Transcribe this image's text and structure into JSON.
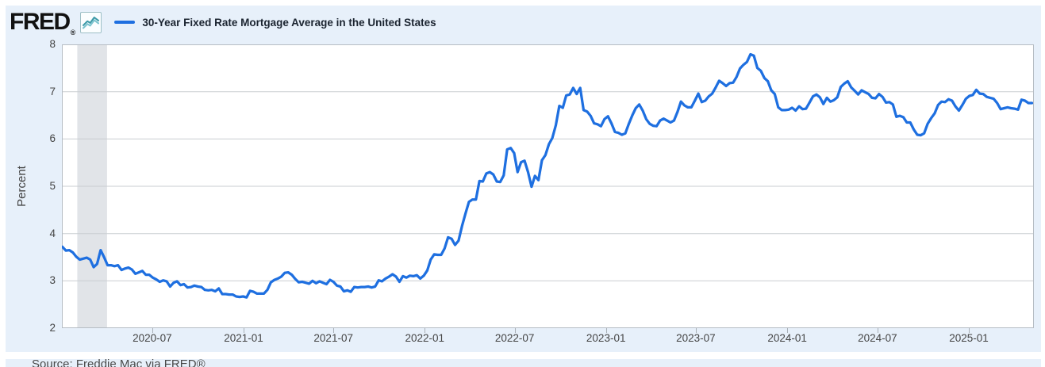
{
  "header": {
    "logo_text": "FRED",
    "logo_reg": "®",
    "series_title": "30-Year Fixed Rate Mortgage Average in the United States"
  },
  "footer": {
    "source": "Source: Freddie Mac via FRED®"
  },
  "colors": {
    "panel_bg": "#e7f0fa",
    "plot_bg": "#ffffff",
    "gridline": "#c9cdd1",
    "plot_border": "#b6bdc4",
    "recession_band": "#e1e4e8",
    "line": "#1e6fe0",
    "tick_text": "#444444",
    "title_text": "#1b2430",
    "source_text": "#4a4a4a"
  },
  "chart_data": {
    "type": "line",
    "title": "30-Year Fixed Rate Mortgage Average in the United States",
    "xlabel": "",
    "ylabel": "Percent",
    "ylim": [
      2,
      8
    ],
    "yticks": [
      2,
      3,
      4,
      5,
      6,
      7,
      8
    ],
    "grid": true,
    "legend_position": "top",
    "x_domain": [
      "2020-01-01",
      "2025-05-12"
    ],
    "xticks": [
      {
        "date": "2020-07-01",
        "label": "2020-07"
      },
      {
        "date": "2021-01-01",
        "label": "2021-01"
      },
      {
        "date": "2021-07-01",
        "label": "2021-07"
      },
      {
        "date": "2022-01-01",
        "label": "2022-01"
      },
      {
        "date": "2022-07-01",
        "label": "2022-07"
      },
      {
        "date": "2023-01-01",
        "label": "2023-01"
      },
      {
        "date": "2023-07-01",
        "label": "2023-07"
      },
      {
        "date": "2024-01-01",
        "label": "2024-01"
      },
      {
        "date": "2024-07-01",
        "label": "2024-07"
      },
      {
        "date": "2025-01-01",
        "label": "2025-01"
      }
    ],
    "recession_bands": [
      {
        "start": "2020-02-01",
        "end": "2020-04-01"
      }
    ],
    "series": [
      {
        "name": "30-Year Fixed Rate Mortgage Average in the United States",
        "color": "#1e6fe0",
        "frequency": "weekly",
        "start_date": "2020-01-02",
        "end_date": "2025-05-08",
        "values": [
          3.72,
          3.64,
          3.65,
          3.6,
          3.51,
          3.45,
          3.47,
          3.49,
          3.45,
          3.29,
          3.36,
          3.65,
          3.5,
          3.33,
          3.33,
          3.31,
          3.33,
          3.23,
          3.26,
          3.28,
          3.24,
          3.15,
          3.18,
          3.21,
          3.13,
          3.13,
          3.07,
          3.03,
          2.98,
          3.01,
          2.99,
          2.88,
          2.96,
          2.99,
          2.91,
          2.93,
          2.86,
          2.87,
          2.9,
          2.88,
          2.87,
          2.81,
          2.8,
          2.81,
          2.78,
          2.84,
          2.72,
          2.72,
          2.71,
          2.71,
          2.67,
          2.66,
          2.67,
          2.65,
          2.79,
          2.77,
          2.73,
          2.73,
          2.73,
          2.81,
          2.97,
          3.02,
          3.05,
          3.09,
          3.17,
          3.18,
          3.13,
          3.04,
          2.97,
          2.98,
          2.96,
          2.94,
          3.0,
          2.95,
          2.99,
          2.96,
          2.93,
          3.02,
          2.98,
          2.9,
          2.88,
          2.78,
          2.8,
          2.77,
          2.87,
          2.86,
          2.87,
          2.87,
          2.88,
          2.86,
          2.88,
          3.01,
          2.99,
          3.05,
          3.09,
          3.14,
          3.09,
          2.98,
          3.1,
          3.07,
          3.11,
          3.1,
          3.12,
          3.05,
          3.11,
          3.22,
          3.45,
          3.56,
          3.55,
          3.55,
          3.69,
          3.92,
          3.89,
          3.76,
          3.85,
          4.16,
          4.42,
          4.67,
          4.72,
          4.72,
          5.11,
          5.1,
          5.27,
          5.3,
          5.25,
          5.1,
          5.09,
          5.23,
          5.78,
          5.81,
          5.7,
          5.3,
          5.51,
          5.54,
          5.3,
          4.99,
          5.22,
          5.13,
          5.55,
          5.66,
          5.89,
          6.02,
          6.29,
          6.7,
          6.66,
          6.92,
          6.94,
          7.08,
          6.95,
          7.08,
          6.61,
          6.58,
          6.49,
          6.33,
          6.31,
          6.27,
          6.42,
          6.48,
          6.33,
          6.15,
          6.13,
          6.09,
          6.12,
          6.32,
          6.5,
          6.65,
          6.73,
          6.6,
          6.42,
          6.32,
          6.28,
          6.27,
          6.39,
          6.43,
          6.39,
          6.35,
          6.39,
          6.57,
          6.79,
          6.71,
          6.67,
          6.67,
          6.81,
          6.96,
          6.78,
          6.81,
          6.9,
          6.96,
          7.09,
          7.23,
          7.18,
          7.12,
          7.18,
          7.19,
          7.31,
          7.49,
          7.57,
          7.63,
          7.79,
          7.76,
          7.5,
          7.44,
          7.29,
          7.22,
          7.03,
          6.95,
          6.67,
          6.61,
          6.61,
          6.62,
          6.66,
          6.6,
          6.69,
          6.63,
          6.64,
          6.77,
          6.9,
          6.94,
          6.88,
          6.74,
          6.87,
          6.79,
          6.82,
          6.88,
          7.1,
          7.17,
          7.22,
          7.09,
          7.02,
          6.94,
          7.03,
          6.99,
          6.95,
          6.87,
          6.86,
          6.95,
          6.89,
          6.77,
          6.78,
          6.73,
          6.47,
          6.49,
          6.46,
          6.35,
          6.35,
          6.2,
          6.09,
          6.08,
          6.12,
          6.32,
          6.44,
          6.54,
          6.72,
          6.79,
          6.78,
          6.84,
          6.81,
          6.69,
          6.6,
          6.72,
          6.85,
          6.91,
          6.93,
          7.04,
          6.96,
          6.95,
          6.89,
          6.87,
          6.85,
          6.76,
          6.63,
          6.65,
          6.67,
          6.65,
          6.64,
          6.62,
          6.83,
          6.81,
          6.76,
          6.76
        ]
      }
    ]
  }
}
